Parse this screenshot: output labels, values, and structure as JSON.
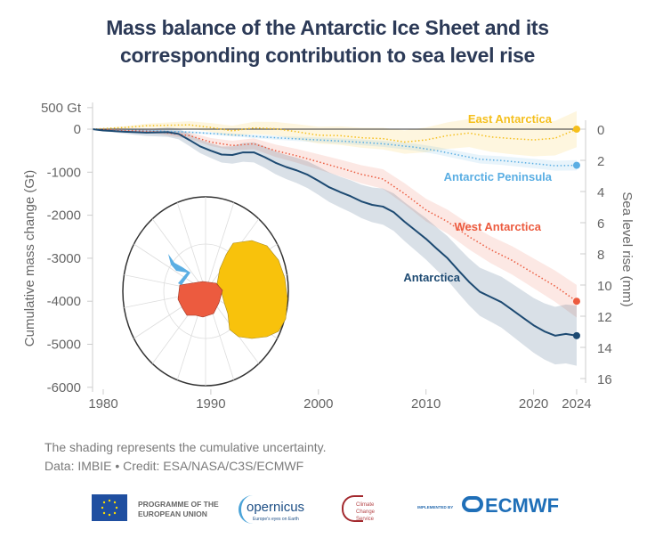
{
  "title_line1": "Mass balance of the Antarctic Ice Sheet and its",
  "title_line2": "corresponding contribution to sea level rise",
  "footer": {
    "note": "The shading represents the cumulative uncertainty.",
    "credit": "Data: IMBIE • Credit: ESA/NASA/C3S/ECMWF"
  },
  "logos": {
    "eu": "PROGRAMME OF THE EUROPEAN UNION",
    "copernicus": "opernicus",
    "copernicus_tagline": "Europe's eyes on Earth",
    "c3s": "Climate Change Service",
    "implemented_by": "IMPLEMENTED BY",
    "ecmwf": "ECMWF"
  },
  "chart_data": {
    "type": "line",
    "title": "Mass balance of the Antarctic Ice Sheet and its corresponding contribution to sea level rise",
    "ylabel": "Cumulative mass change (Gt)",
    "ylabel_right": "Sea level rise (mm)",
    "xlim": [
      1979,
      2024
    ],
    "ylim": [
      -6000,
      500
    ],
    "ylim_right": [
      16,
      0
    ],
    "x_ticks": [
      "1980",
      "1990",
      "2000",
      "2010",
      "2020",
      "2024"
    ],
    "y_ticks": [
      "500 Gt",
      "0",
      "-1000",
      "-2000",
      "-3000",
      "-4000",
      "-5000",
      "-6000"
    ],
    "y_ticks_right": [
      "0",
      "2",
      "4",
      "6",
      "8",
      "10",
      "12",
      "14",
      "16"
    ],
    "grid": false,
    "inset": "map of Antarctica colored by region",
    "series": [
      {
        "name": "East Antarctica",
        "color": "#f5bf1c",
        "style": "dotted",
        "uncertainty_2024": 420,
        "x": [
          1979,
          1982,
          1984,
          1986,
          1988,
          1990,
          1992,
          1994,
          1996,
          1998,
          2000,
          2002,
          2004,
          2006,
          2008,
          2010,
          2012,
          2014,
          2016,
          2018,
          2020,
          2022,
          2024
        ],
        "y": [
          0,
          40,
          80,
          90,
          100,
          40,
          -40,
          30,
          10,
          -60,
          -140,
          -150,
          -200,
          -220,
          -300,
          -250,
          -150,
          -90,
          -180,
          -220,
          -250,
          -210,
          0
        ]
      },
      {
        "name": "Antarctic Peninsula",
        "color": "#5aaee3",
        "style": "dotted",
        "uncertainty_2024": 120,
        "x": [
          1979,
          1982,
          1985,
          1988,
          1990,
          1993,
          1996,
          2000,
          2003,
          2006,
          2009,
          2011,
          2013,
          2015,
          2017,
          2020,
          2022,
          2024
        ],
        "y": [
          0,
          -20,
          -40,
          -70,
          -100,
          -150,
          -200,
          -250,
          -290,
          -340,
          -420,
          -500,
          -600,
          -700,
          -730,
          -800,
          -850,
          -840
        ]
      },
      {
        "name": "West Antarctica",
        "color": "#ec5b3f",
        "style": "dotted",
        "uncertainty_2024": 380,
        "x": [
          1979,
          1982,
          1985,
          1988,
          1990,
          1992,
          1994,
          1996,
          1998,
          2000,
          2002,
          2004,
          2006,
          2008,
          2010,
          2012,
          2014,
          2016,
          2018,
          2020,
          2022,
          2024
        ],
        "y": [
          0,
          -30,
          -60,
          -150,
          -300,
          -380,
          -340,
          -500,
          -620,
          -760,
          -900,
          -1050,
          -1160,
          -1500,
          -1880,
          -2150,
          -2500,
          -2800,
          -3050,
          -3350,
          -3650,
          -4000
        ]
      },
      {
        "name": "Antarctica",
        "color": "#1d4a72",
        "style": "solid",
        "uncertainty_2024": 700,
        "x": [
          1979,
          1980,
          1982,
          1984,
          1986,
          1987,
          1988,
          1989,
          1990,
          1991,
          1992,
          1993,
          1994,
          1995,
          1996,
          1997,
          1998,
          1999,
          2000,
          2001,
          2002,
          2003,
          2004,
          2005,
          2006,
          2007,
          2008,
          2009,
          2010,
          2011,
          2012,
          2013,
          2014,
          2015,
          2016,
          2017,
          2018,
          2019,
          2020,
          2021,
          2022,
          2023,
          2024
        ],
        "y": [
          0,
          -30,
          -60,
          -80,
          -70,
          -110,
          -250,
          -400,
          -500,
          -590,
          -600,
          -540,
          -540,
          -650,
          -780,
          -880,
          -960,
          -1060,
          -1200,
          -1350,
          -1460,
          -1560,
          -1680,
          -1760,
          -1800,
          -1930,
          -2150,
          -2350,
          -2550,
          -2780,
          -3000,
          -3280,
          -3550,
          -3780,
          -3900,
          -4020,
          -4200,
          -4380,
          -4560,
          -4700,
          -4800,
          -4760,
          -4800
        ]
      }
    ]
  }
}
